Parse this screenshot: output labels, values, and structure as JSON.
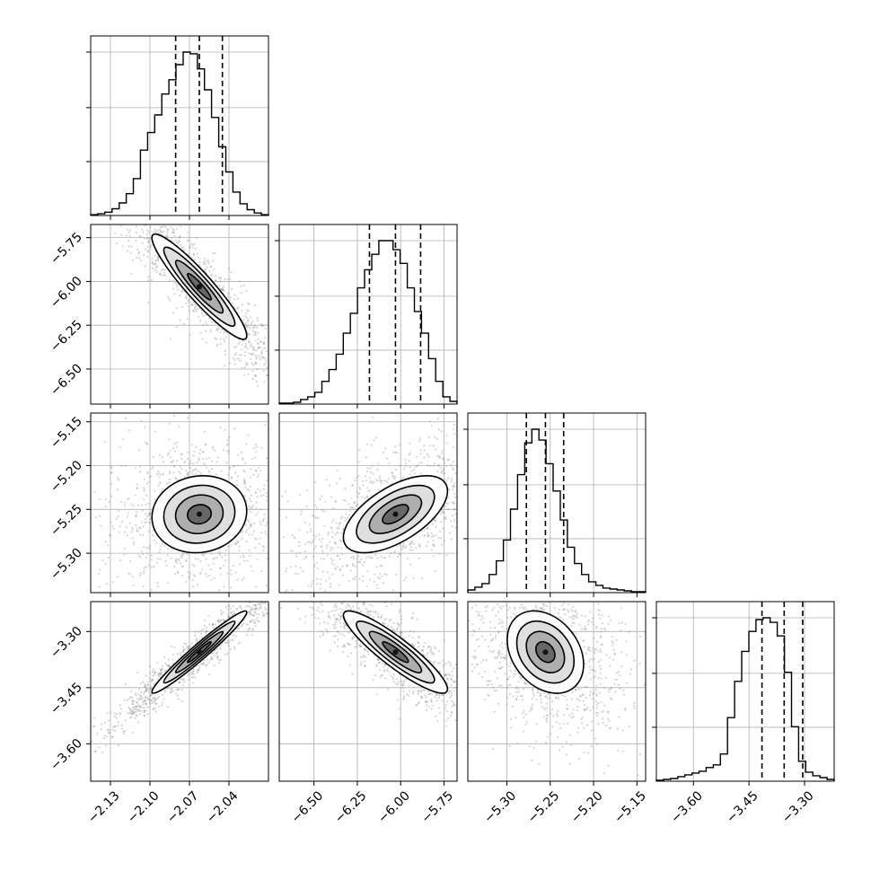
{
  "chart_data": {
    "type": "corner",
    "grid": true,
    "parameters": [
      {
        "range": [
          -2.145,
          -2.01
        ],
        "ticks": [
          -2.13,
          -2.1,
          -2.07,
          -2.04
        ],
        "tick_labels": [
          "−2.13",
          "−2.10",
          "−2.07",
          "−2.04"
        ],
        "quantiles": [
          -2.0805,
          -2.0625,
          -2.045
        ],
        "median": -2.0625,
        "sigma": 0.018
      },
      {
        "range": [
          -6.7,
          -5.675
        ],
        "ticks": [
          -6.5,
          -6.25,
          -6.0,
          -5.75
        ],
        "tick_labels": [
          "−6.50",
          "−6.25",
          "−6.00",
          "−5.75"
        ],
        "quantiles": [
          -6.18,
          -6.03,
          -5.885
        ],
        "median": -6.03,
        "sigma": 0.15
      },
      {
        "range": [
          -5.345,
          -5.14
        ],
        "ticks": [
          -5.3,
          -5.25,
          -5.2,
          -5.15
        ],
        "tick_labels": [
          "−5.30",
          "−5.25",
          "−5.20",
          "−5.15"
        ],
        "quantiles": [
          -5.2775,
          -5.2555,
          -5.2345
        ],
        "median": -5.2555,
        "sigma": 0.022
      },
      {
        "range": [
          -3.7,
          -3.22
        ],
        "ticks": [
          -3.6,
          -3.45,
          -3.3
        ],
        "tick_labels": [
          "−3.60",
          "−3.45",
          "−3.30"
        ],
        "quantiles": [
          -3.415,
          -3.355,
          -3.305
        ],
        "median": -3.355,
        "sigma": 0.055
      }
    ],
    "histograms": [
      {
        "param": 0,
        "counts": [
          1,
          2,
          4,
          8,
          15,
          26,
          44,
          78,
          99,
          120,
          145,
          162,
          180,
          195,
          193,
          175,
          150,
          117,
          82,
          52,
          28,
          14,
          7,
          3,
          1
        ]
      },
      {
        "param": 1,
        "counts": [
          1,
          1,
          2,
          5,
          8,
          13,
          25,
          38,
          55,
          78,
          100,
          128,
          148,
          165,
          180,
          180,
          170,
          155,
          128,
          102,
          78,
          50,
          25,
          8,
          3
        ]
      },
      {
        "param": 2,
        "counts": [
          3,
          6,
          10,
          20,
          35,
          58,
          92,
          130,
          165,
          180,
          168,
          142,
          112,
          80,
          50,
          32,
          20,
          12,
          8,
          5,
          4,
          3,
          2,
          1,
          1
        ]
      },
      {
        "param": 3,
        "counts": [
          1,
          2,
          3,
          5,
          7,
          9,
          11,
          15,
          18,
          30,
          70,
          110,
          143,
          165,
          178,
          180,
          175,
          160,
          120,
          60,
          22,
          10,
          6,
          4,
          2
        ]
      }
    ],
    "correlations": [
      {
        "pair": [
          0,
          1
        ],
        "rho": -0.93
      },
      {
        "pair": [
          0,
          2
        ],
        "rho": 0.08
      },
      {
        "pair": [
          1,
          2
        ],
        "rho": 0.6
      },
      {
        "pair": [
          0,
          3
        ],
        "rho": 0.97
      },
      {
        "pair": [
          1,
          3
        ],
        "rho": -0.9
      },
      {
        "pair": [
          2,
          3
        ],
        "rho": -0.3
      }
    ],
    "contour_sigma_levels": [
      0.5,
      1.0,
      1.5,
      2.0
    ]
  }
}
